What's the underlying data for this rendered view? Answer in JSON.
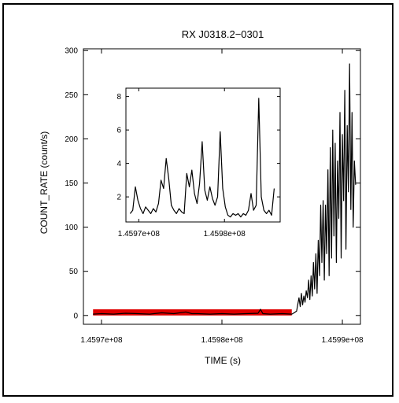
{
  "colors": {
    "line": "#000000",
    "background_band": "#e00000"
  },
  "chart_data": [
    {
      "type": "line",
      "title": "RX J0318.2−0301",
      "xlabel": "TIME (s)",
      "ylabel": "COUNT_RATE (count/s)",
      "xlim": [
        145968500,
        145991500
      ],
      "ylim": [
        -10,
        302
      ],
      "x_ticks": [
        145970000,
        145980000,
        145990000
      ],
      "x_tick_labels": [
        "1.4597e+08",
        "1.4598e+08",
        "1.4599e+08"
      ],
      "y_ticks": [
        0,
        50,
        100,
        150,
        200,
        250,
        300
      ],
      "y_tick_labels": [
        "0",
        "50",
        "100",
        "150",
        "200",
        "250",
        "300"
      ],
      "highlight_band": {
        "x": [
          145969300,
          145985800
        ],
        "y": [
          0,
          7
        ]
      },
      "series": [
        {
          "x": [
            145969300,
            145970000,
            145971000,
            145972000,
            145973000,
            145974000,
            145975000,
            145976000,
            145977000,
            145977500,
            145978000,
            145979000,
            145980000,
            145981000,
            145982000,
            145983000,
            145983200,
            145983400,
            145984000,
            145985000,
            145985800,
            145986000,
            145986200,
            145986400,
            145986500,
            145986600,
            145986700,
            145986800,
            145986900,
            145987000,
            145987100,
            145987200,
            145987300,
            145987400,
            145987500,
            145987600,
            145987700,
            145987800,
            145987900,
            145988000,
            145988100,
            145988200,
            145988300,
            145988400,
            145988500,
            145988600,
            145988700,
            145988800,
            145988900,
            145989000,
            145989100,
            145989200,
            145989300,
            145989400,
            145989500,
            145989600,
            145989700,
            145989800,
            145989900,
            145990000,
            145990100,
            145990200,
            145990300,
            145990400,
            145990500,
            145990600,
            145990700,
            145990800,
            145990900,
            145991000,
            145991100
          ],
          "y": [
            1.5,
            2,
            1.5,
            2.5,
            2,
            1.5,
            3,
            2,
            4,
            2,
            2,
            1.5,
            2,
            1.5,
            2,
            2.5,
            7,
            2,
            1.5,
            2,
            1.5,
            3,
            5,
            20,
            10,
            25,
            12,
            22,
            15,
            28,
            20,
            40,
            18,
            45,
            22,
            60,
            30,
            70,
            25,
            85,
            45,
            125,
            60,
            130,
            40,
            125,
            70,
            165,
            45,
            190,
            65,
            210,
            90,
            195,
            60,
            175,
            110,
            230,
            65,
            205,
            130,
            255,
            75,
            215,
            140,
            285,
            120,
            230,
            100,
            175,
            148
          ]
        }
      ]
    },
    {
      "type": "line",
      "xlim": [
        145968500,
        145986500
      ],
      "ylim": [
        0.5,
        8.5
      ],
      "x_ticks": [
        145970000,
        145980000
      ],
      "x_tick_labels": [
        "1.4597e+08",
        "1.4598e+08"
      ],
      "y_ticks": [
        2,
        4,
        6,
        8
      ],
      "y_tick_labels": [
        "2",
        "4",
        "6",
        "8"
      ],
      "series": [
        {
          "x": [
            145969000,
            145969300,
            145969600,
            145969900,
            145970200,
            145970500,
            145970800,
            145971100,
            145971400,
            145971700,
            145972000,
            145972300,
            145972600,
            145972900,
            145973200,
            145973500,
            145973800,
            145974100,
            145974400,
            145974700,
            145975000,
            145975300,
            145975600,
            145975900,
            145976200,
            145976500,
            145976800,
            145977100,
            145977400,
            145977700,
            145978000,
            145978300,
            145978600,
            145978900,
            145979200,
            145979500,
            145979800,
            145980100,
            145980400,
            145980700,
            145981000,
            145981300,
            145981600,
            145981900,
            145982200,
            145982500,
            145982800,
            145983100,
            145983400,
            145983700,
            145984000,
            145984300,
            145984600,
            145984900,
            145985200,
            145985500,
            145985800
          ],
          "y": [
            1.0,
            1.2,
            2.6,
            1.8,
            1.3,
            1.0,
            1.4,
            1.2,
            1.0,
            1.3,
            1.1,
            1.6,
            3.0,
            2.5,
            4.3,
            3.1,
            1.5,
            1.2,
            1.0,
            1.3,
            1.1,
            1.0,
            3.4,
            2.6,
            3.6,
            2.2,
            1.6,
            2.8,
            5.3,
            2.4,
            1.8,
            2.6,
            1.9,
            1.5,
            2.0,
            5.9,
            2.5,
            1.4,
            0.9,
            0.8,
            1.0,
            0.9,
            1.0,
            0.8,
            1.0,
            0.9,
            1.2,
            2.2,
            1.2,
            1.5,
            7.9,
            2.0,
            1.2,
            1.0,
            1.2,
            0.9,
            2.5
          ]
        }
      ]
    }
  ]
}
